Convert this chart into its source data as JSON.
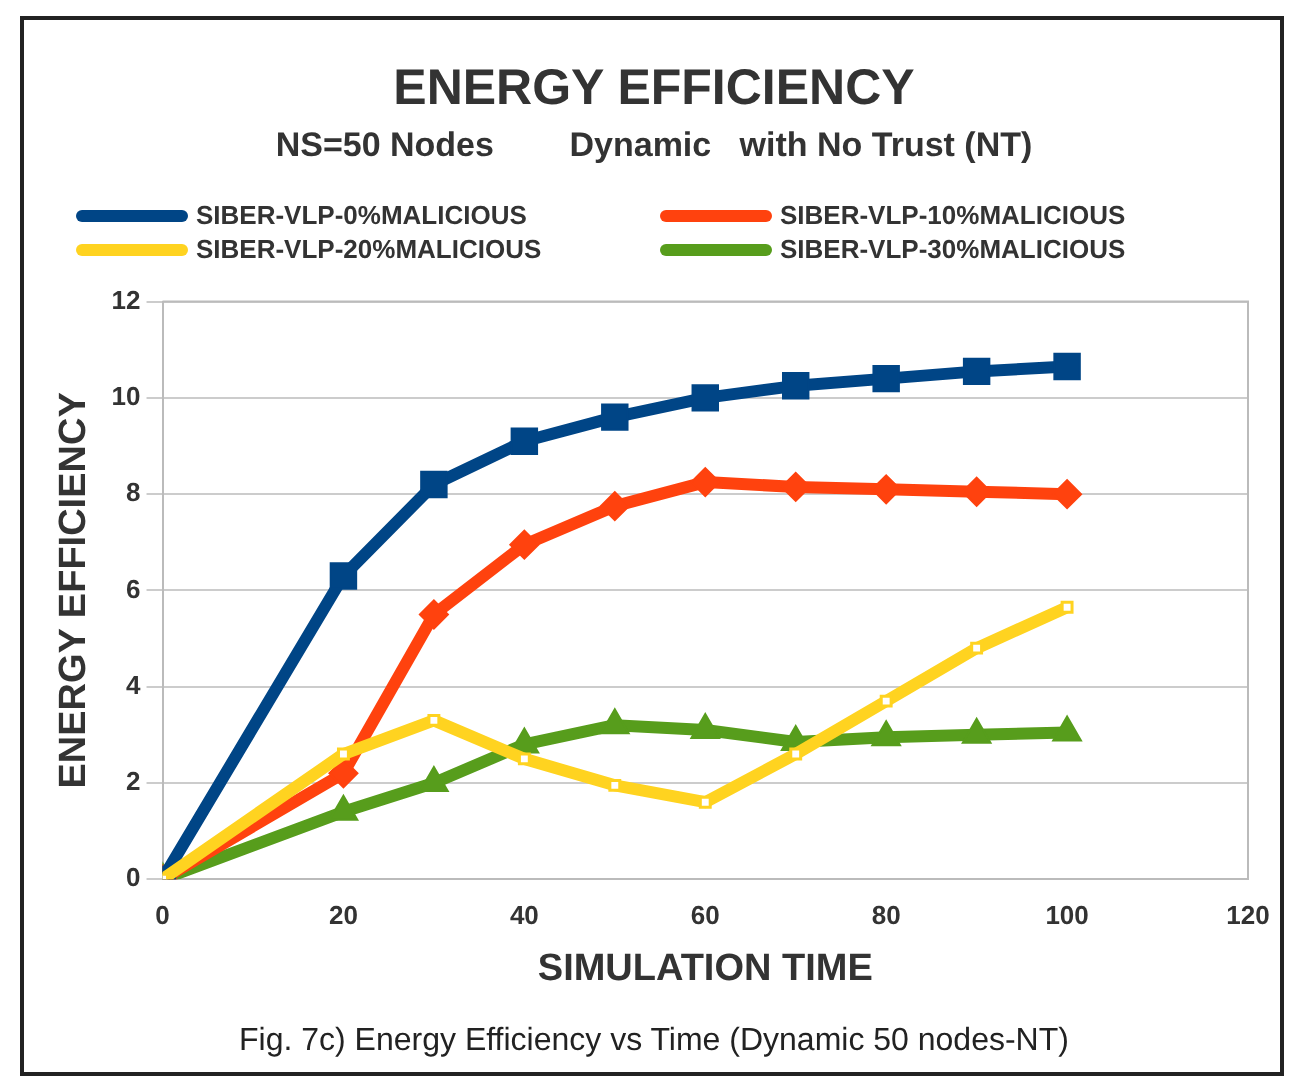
{
  "chart_data": {
    "type": "line",
    "title": "ENERGY EFFICIENCY",
    "subtitle": "NS=50 Nodes        Dynamic   with No Trust (NT)",
    "xlabel": "SIMULATION TIME",
    "ylabel": "ENERGY EFFICIENCY",
    "x": [
      0,
      20,
      30,
      40,
      50,
      60,
      70,
      80,
      90,
      100
    ],
    "series": [
      {
        "name": "SIBER-VLP-0%MALICIOUS",
        "color": "#004586",
        "marker": "square",
        "values": [
          0,
          6.3,
          8.2,
          9.1,
          9.6,
          10.0,
          10.25,
          10.4,
          10.55,
          10.65
        ]
      },
      {
        "name": "SIBER-VLP-10%MALICIOUS",
        "color": "#ff420e",
        "marker": "diamond",
        "values": [
          0,
          2.2,
          5.5,
          6.95,
          7.75,
          8.25,
          8.15,
          8.1,
          8.05,
          8.0
        ]
      },
      {
        "name": "SIBER-VLP-20%MALICIOUS",
        "color": "#ffd320",
        "marker": "square",
        "values": [
          0,
          2.6,
          3.3,
          2.5,
          1.95,
          1.6,
          2.6,
          3.7,
          4.8,
          5.65
        ]
      },
      {
        "name": "SIBER-VLP-30%MALICIOUS",
        "color": "#579d1c",
        "marker": "triangle",
        "values": [
          0,
          1.4,
          2.0,
          2.8,
          3.2,
          3.1,
          2.85,
          2.95,
          3.0,
          3.05
        ]
      }
    ],
    "xlim": [
      0,
      120
    ],
    "xticks": [
      0,
      20,
      40,
      60,
      80,
      100,
      120
    ],
    "ylim": [
      0,
      12
    ],
    "yticks": [
      0,
      2,
      4,
      6,
      8,
      10,
      12
    ],
    "grid": "y",
    "legend": "top",
    "annotations": [
      "Fig. 7c) Energy Efficiency vs Time (Dynamic 50 nodes-NT)"
    ]
  }
}
